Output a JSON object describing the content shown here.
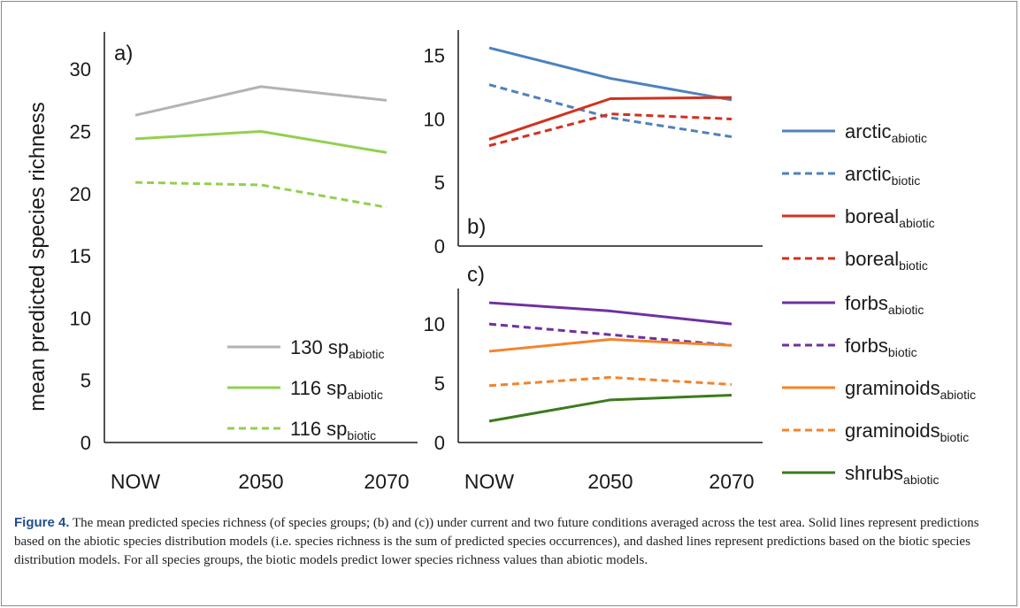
{
  "figure": {
    "caption_label": "Figure 4.",
    "caption_text": "The mean predicted species richness (of species groups; (b) and (c)) under current and two future conditions averaged across the test area. Solid lines represent predictions based on the abiotic species distribution models (i.e. species richness is the sum of predicted species occurrences), and dashed lines represent predictions based on the biotic species distribution models. For all species groups, the biotic models predict lower species richness values than abiotic models."
  },
  "chart_data": [
    {
      "panel": "a)",
      "type": "line",
      "ylabel": "mean predicted species richness",
      "categories": [
        "NOW",
        "2050",
        "2070"
      ],
      "ylim": [
        0,
        33
      ],
      "yticks": [
        0,
        5,
        10,
        15,
        20,
        25,
        30
      ],
      "legend_position": "bottom-right",
      "series": [
        {
          "name": "130 sp",
          "sub": "abiotic",
          "values": [
            26.3,
            28.6,
            27.5
          ],
          "color": "#b3b3b3",
          "dashed": false
        },
        {
          "name": "116 sp",
          "sub": "abiotic",
          "values": [
            24.4,
            25.0,
            23.3
          ],
          "color": "#92d050",
          "dashed": false
        },
        {
          "name": "116 sp",
          "sub": "biotic",
          "values": [
            20.9,
            20.7,
            18.9
          ],
          "color": "#92d050",
          "dashed": true
        }
      ]
    },
    {
      "panel": "b)",
      "type": "line",
      "categories": [
        "NOW",
        "2050",
        "2070"
      ],
      "ylim": [
        0,
        17
      ],
      "yticks": [
        0,
        5,
        10,
        15
      ],
      "legend_position": "right",
      "series": [
        {
          "name": "arctic",
          "sub": "abiotic",
          "values": [
            15.6,
            13.2,
            11.5
          ],
          "color": "#4f81bd",
          "dashed": false
        },
        {
          "name": "arctic",
          "sub": "biotic",
          "values": [
            12.7,
            10.1,
            8.6
          ],
          "color": "#4f81bd",
          "dashed": true
        },
        {
          "name": "boreal",
          "sub": "abiotic",
          "values": [
            8.4,
            11.6,
            11.7
          ],
          "color": "#d1321f",
          "dashed": false
        },
        {
          "name": "boreal",
          "sub": "biotic",
          "values": [
            7.9,
            10.4,
            10.0
          ],
          "color": "#d1321f",
          "dashed": true
        }
      ]
    },
    {
      "panel": "c)",
      "type": "line",
      "categories": [
        "NOW",
        "2050",
        "2070"
      ],
      "ylim": [
        0,
        13
      ],
      "yticks": [
        0,
        5,
        10
      ],
      "legend_position": "right",
      "series": [
        {
          "name": "forbs",
          "sub": "abiotic",
          "values": [
            11.8,
            11.1,
            10.0
          ],
          "color": "#7030a0",
          "dashed": false
        },
        {
          "name": "forbs",
          "sub": "biotic",
          "values": [
            10.0,
            9.1,
            8.2
          ],
          "color": "#7030a0",
          "dashed": true
        },
        {
          "name": "graminoids",
          "sub": "abiotic",
          "values": [
            7.7,
            8.7,
            8.2
          ],
          "color": "#f4832b",
          "dashed": false
        },
        {
          "name": "graminoids",
          "sub": "biotic",
          "values": [
            4.8,
            5.5,
            4.9
          ],
          "color": "#f4832b",
          "dashed": true
        },
        {
          "name": "shrubs",
          "sub": "abiotic",
          "values": [
            1.8,
            3.6,
            4.0
          ],
          "color": "#3d7a1f",
          "dashed": false
        }
      ]
    }
  ]
}
